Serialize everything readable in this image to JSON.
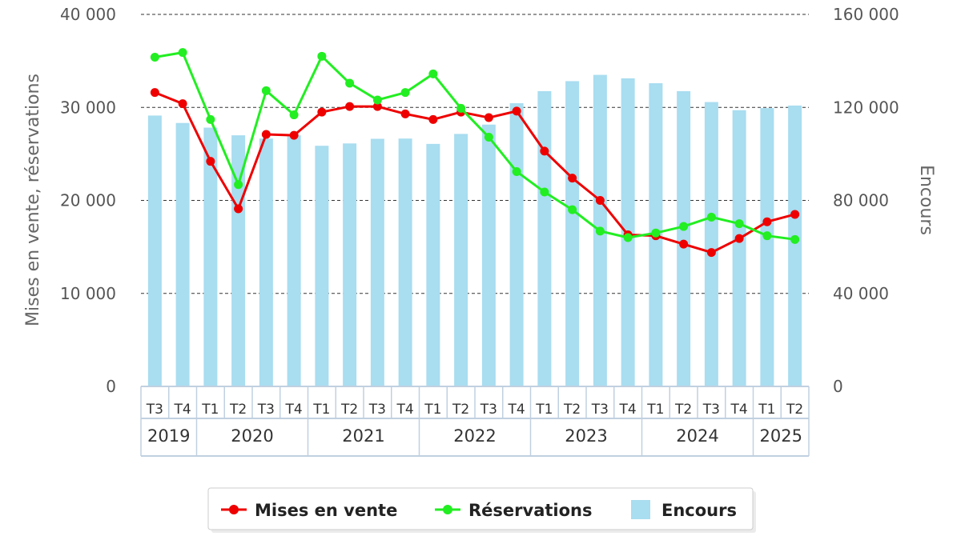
{
  "chart_data": {
    "type": "bar",
    "categories": [
      "T3",
      "T4",
      "T1",
      "T2",
      "T3",
      "T4",
      "T1",
      "T2",
      "T3",
      "T4",
      "T1",
      "T2",
      "T3",
      "T4",
      "T1",
      "T2",
      "T3",
      "T4",
      "T1",
      "T2",
      "T3",
      "T4",
      "T1",
      "T2"
    ],
    "year_groups": [
      {
        "label": "2019",
        "count": 2
      },
      {
        "label": "2020",
        "count": 4
      },
      {
        "label": "2021",
        "count": 4
      },
      {
        "label": "2022",
        "count": 4
      },
      {
        "label": "2023",
        "count": 4
      },
      {
        "label": "2024",
        "count": 4
      },
      {
        "label": "2025",
        "count": 2
      }
    ],
    "series": [
      {
        "name": "Encours",
        "type": "bar",
        "axis": "right",
        "color": "#a9ddf0",
        "values": [
          116500,
          113300,
          111300,
          108000,
          106600,
          108000,
          103500,
          104500,
          106500,
          106600,
          104300,
          108600,
          112600,
          121800,
          127000,
          131300,
          134000,
          132500,
          130400,
          127000,
          122300,
          118800,
          119700,
          120800
        ]
      },
      {
        "name": "Mises en vente",
        "type": "line",
        "axis": "left",
        "color": "#ee0000",
        "values": [
          31600,
          30400,
          24200,
          19100,
          27100,
          27000,
          29500,
          30100,
          30100,
          29300,
          28700,
          29500,
          28900,
          29600,
          25300,
          22400,
          20000,
          16300,
          16200,
          15300,
          14400,
          15900,
          17700,
          18500
        ]
      },
      {
        "name": "Réservations",
        "type": "line",
        "axis": "left",
        "color": "#22ee22",
        "values": [
          35400,
          35900,
          28700,
          21700,
          31800,
          29200,
          35500,
          32600,
          30800,
          31600,
          33600,
          29900,
          26800,
          23100,
          20900,
          19000,
          16700,
          16000,
          16500,
          17200,
          18200,
          17500,
          16200,
          15800
        ]
      }
    ],
    "y_left": {
      "label": "Mises en vente, réservations",
      "min": 0,
      "max": 40000,
      "ticks": [
        "0",
        "10 000",
        "20 000",
        "30 000",
        "40 000"
      ]
    },
    "y_right": {
      "label": "Encours",
      "min": 0,
      "max": 160000,
      "ticks": [
        "0",
        "40 000",
        "80 000",
        "120 000",
        "160 000"
      ]
    },
    "grid": true,
    "legend": {
      "position": "bottom",
      "items": [
        "Mises en vente",
        "Réservations",
        "Encours"
      ]
    }
  }
}
